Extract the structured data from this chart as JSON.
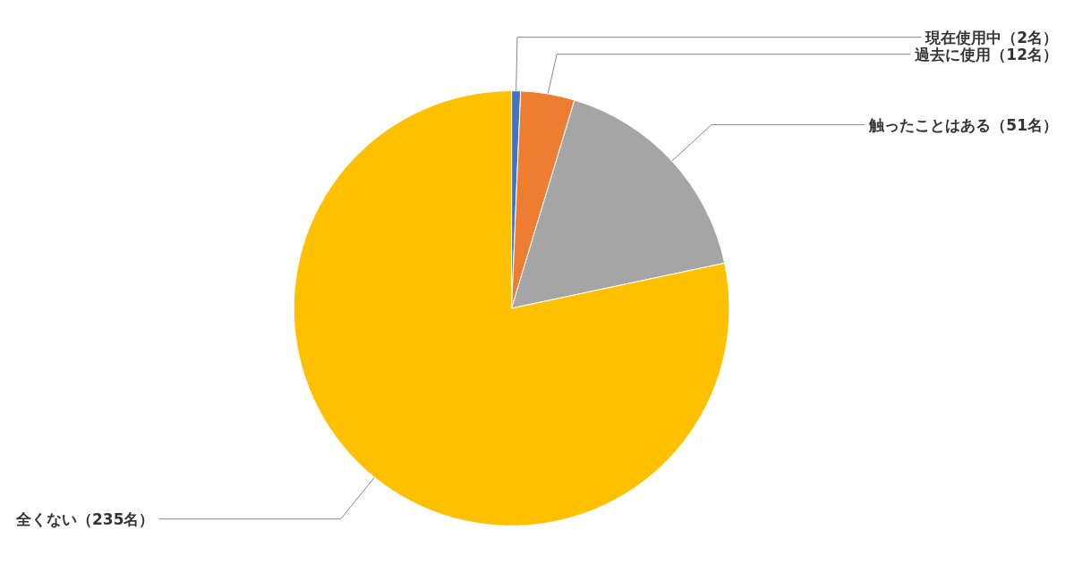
{
  "chart_data": {
    "type": "pie",
    "categories": [
      "現在使用中（2名）",
      "過去に使用（12名）",
      "触ったことはある（51名）",
      "全くない（235名）"
    ],
    "values": [
      2,
      12,
      51,
      235
    ],
    "colors": [
      "#4472c4",
      "#ed7d31",
      "#a5a5a5",
      "#ffc000"
    ],
    "legend": false
  }
}
